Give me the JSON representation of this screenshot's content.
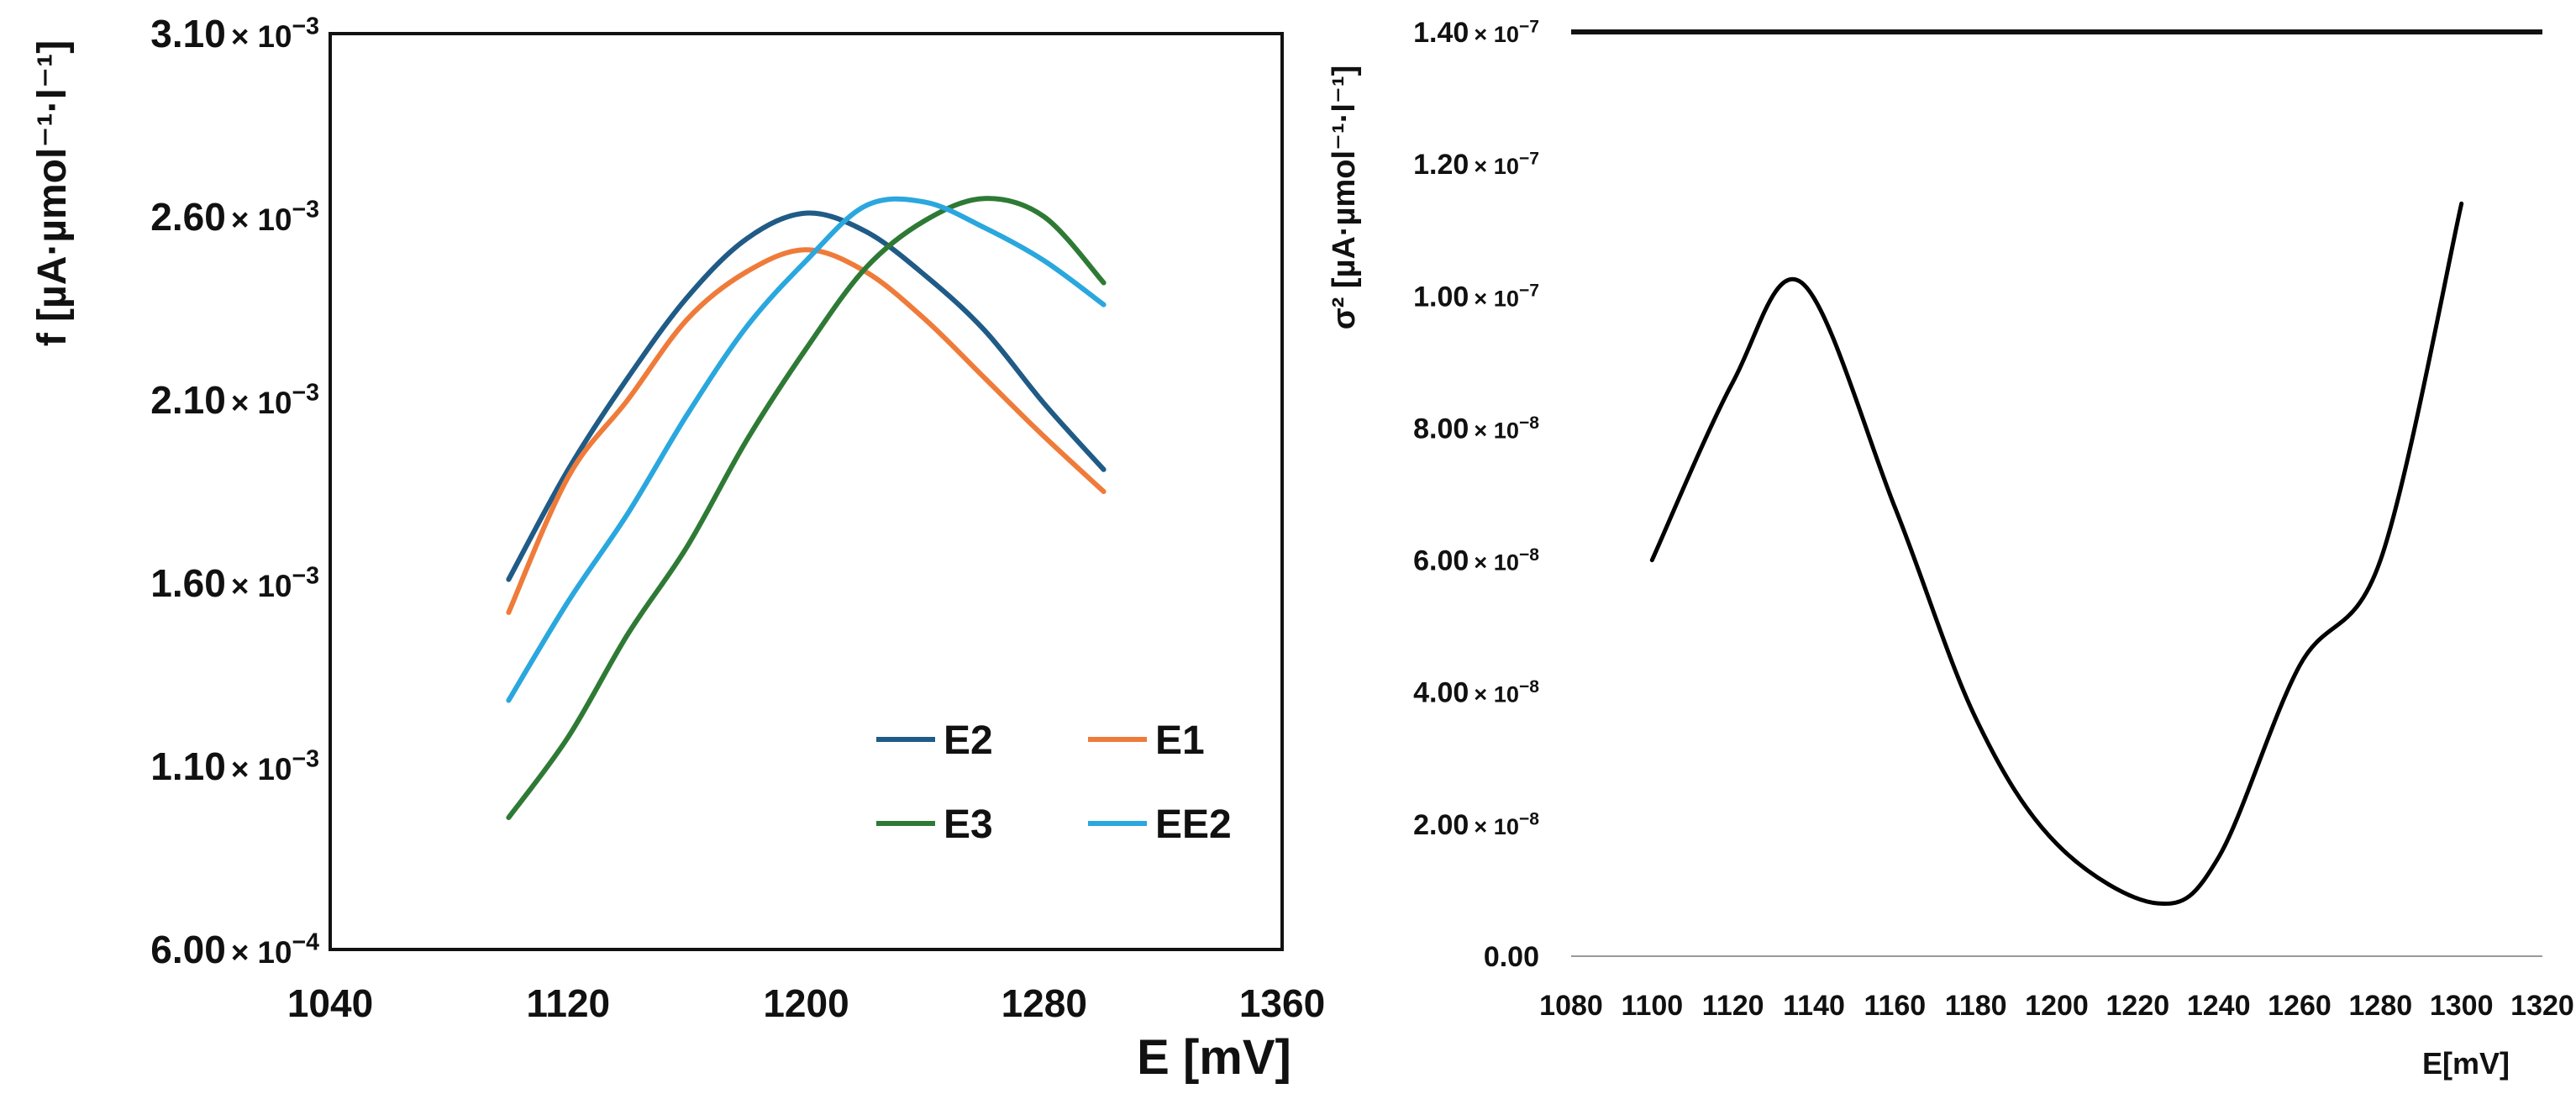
{
  "chart_data": [
    {
      "type": "line",
      "title": "",
      "xlabel": "E [mV]",
      "ylabel": "f [µA·µmol⁻¹·l⁻¹]",
      "xlim": [
        1040,
        1360
      ],
      "ylim": [
        0.0006,
        0.0031
      ],
      "xticks": [
        "1040",
        "1120",
        "1200",
        "1280",
        "1360"
      ],
      "xtick_values": [
        1040,
        1120,
        1200,
        1280,
        1360
      ],
      "yticks": [
        {
          "mantissa": "6.00",
          "exp": "−4",
          "value": 0.0006
        },
        {
          "mantissa": "1.10",
          "exp": "−3",
          "value": 0.0011
        },
        {
          "mantissa": "1.60",
          "exp": "−3",
          "value": 0.0016
        },
        {
          "mantissa": "2.10",
          "exp": "−3",
          "value": 0.0021
        },
        {
          "mantissa": "2.60",
          "exp": "−3",
          "value": 0.0026
        },
        {
          "mantissa": "3.10",
          "exp": "−3",
          "value": 0.0031
        }
      ],
      "legend_position": "bottom-right",
      "series": [
        {
          "name": "E2",
          "color": "#1f5b86",
          "x": [
            1100,
            1120,
            1140,
            1160,
            1180,
            1200,
            1220,
            1240,
            1260,
            1280,
            1300
          ],
          "y": [
            0.00161,
            0.00191,
            0.00216,
            0.00238,
            0.00254,
            0.00261,
            0.00256,
            0.00244,
            0.00229,
            0.00209,
            0.00191
          ]
        },
        {
          "name": "E1",
          "color": "#ef7b3a",
          "x": [
            1100,
            1120,
            1140,
            1160,
            1180,
            1200,
            1220,
            1240,
            1260,
            1280,
            1300
          ],
          "y": [
            0.00152,
            0.00189,
            0.0021,
            0.00232,
            0.00245,
            0.00251,
            0.00245,
            0.00232,
            0.00216,
            0.002,
            0.00185
          ]
        },
        {
          "name": "E3",
          "color": "#2e7a35",
          "x": [
            1100,
            1120,
            1140,
            1160,
            1180,
            1200,
            1220,
            1240,
            1260,
            1280,
            1300
          ],
          "y": [
            0.00096,
            0.00118,
            0.00146,
            0.0017,
            0.00199,
            0.00224,
            0.00246,
            0.00259,
            0.00265,
            0.0026,
            0.00242
          ]
        },
        {
          "name": "EE2",
          "color": "#2aa7de",
          "x": [
            1100,
            1120,
            1140,
            1160,
            1180,
            1200,
            1220,
            1240,
            1260,
            1280,
            1300
          ],
          "y": [
            0.00128,
            0.00155,
            0.00179,
            0.00206,
            0.0023,
            0.00248,
            0.00263,
            0.00264,
            0.00257,
            0.00248,
            0.00236
          ]
        }
      ]
    },
    {
      "type": "line",
      "title": "",
      "xlabel": "E[mV]",
      "ylabel": "σ² [µA·µmol⁻¹·l⁻¹]",
      "xlim": [
        1080,
        1320
      ],
      "ylim": [
        0,
        1.4e-07
      ],
      "xticks": [
        "1080",
        "1100",
        "1120",
        "1140",
        "1160",
        "1180",
        "1200",
        "1220",
        "1240",
        "1260",
        "1280",
        "1300",
        "1320"
      ],
      "xtick_values": [
        1080,
        1100,
        1120,
        1140,
        1160,
        1180,
        1200,
        1220,
        1240,
        1260,
        1280,
        1300,
        1320
      ],
      "yticks": [
        {
          "mantissa": "0.00",
          "exp": "",
          "value": 0
        },
        {
          "mantissa": "2.00",
          "exp": "−8",
          "value": 2e-08
        },
        {
          "mantissa": "4.00",
          "exp": "−8",
          "value": 4e-08
        },
        {
          "mantissa": "6.00",
          "exp": "−8",
          "value": 6e-08
        },
        {
          "mantissa": "8.00",
          "exp": "−8",
          "value": 8e-08
        },
        {
          "mantissa": "1.00",
          "exp": "−7",
          "value": 1e-07
        },
        {
          "mantissa": "1.20",
          "exp": "−7",
          "value": 1.2e-07
        },
        {
          "mantissa": "1.40",
          "exp": "−7",
          "value": 1.4e-07
        }
      ],
      "series": [
        {
          "name": "σ²",
          "color": "#000000",
          "x": [
            1100,
            1120,
            1137,
            1160,
            1180,
            1200,
            1225,
            1240,
            1260,
            1280,
            1300
          ],
          "y": [
            6e-08,
            8.7e-08,
            1.02e-07,
            6.8e-08,
            3.6e-08,
            1.7e-08,
            8e-09,
            1.5e-08,
            4.4e-08,
            6e-08,
            1.14e-07
          ]
        }
      ]
    }
  ]
}
